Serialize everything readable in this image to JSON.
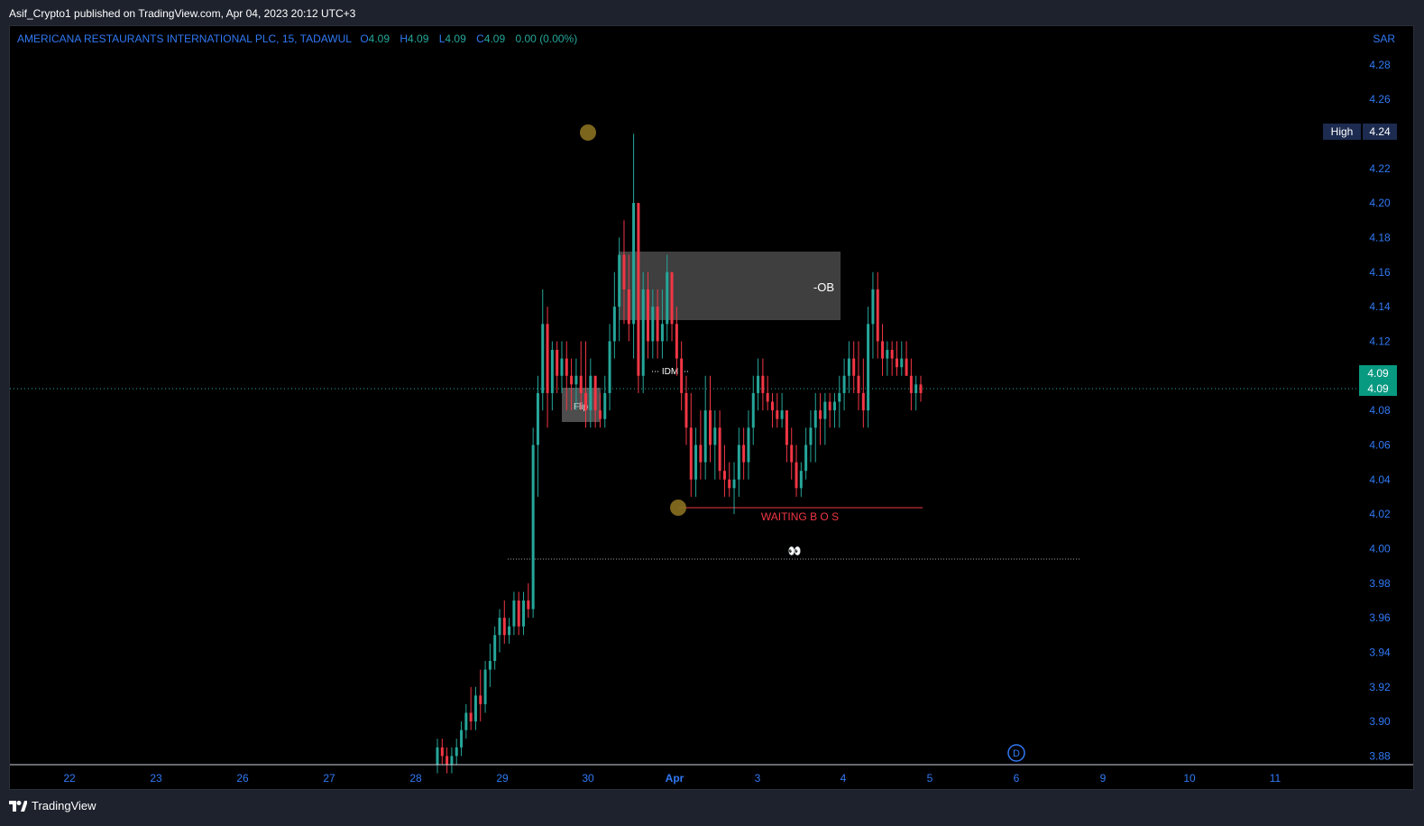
{
  "header": {
    "published": "Asif_Crypto1 published on TradingView.com, Apr 04, 2023 20:12 UTC+3"
  },
  "legend": {
    "symbol": "AMERICANA RESTAURANTS INTERNATIONAL PLC, 15, TADAWUL",
    "open_label": "O",
    "open": "4.09",
    "high_label": "H",
    "high": "4.09",
    "low_label": "L",
    "low": "4.09",
    "close_label": "C",
    "close": "4.09",
    "change": "0.00 (0.00%)"
  },
  "currency": "SAR",
  "brand": "TradingView",
  "colors": {
    "up": "#26a69a",
    "down": "#f23645",
    "accent": "#3179f5",
    "background": "#000000"
  },
  "chart_data": {
    "type": "candlestick",
    "title": "AMERICANA RESTAURANTS INTERNATIONAL PLC, 15, TADAWUL",
    "price_axis_ticks": [
      "4.28",
      "4.26",
      "4.24",
      "4.22",
      "4.20",
      "4.18",
      "4.16",
      "4.14",
      "4.12",
      "4.10",
      "4.08",
      "4.06",
      "4.04",
      "4.02",
      "4.00",
      "3.98",
      "3.96",
      "3.94",
      "3.92",
      "3.90",
      "3.88"
    ],
    "visible_price_ticks": [
      "4.28",
      "4.26",
      "4.22",
      "4.20",
      "4.18",
      "4.16",
      "4.14",
      "4.12",
      "4.08",
      "4.06",
      "4.04",
      "4.02",
      "4.00",
      "3.98",
      "3.96",
      "3.94",
      "3.92",
      "3.90",
      "3.88"
    ],
    "ylim": [
      3.875,
      4.295
    ],
    "time_axis_ticks": [
      "22",
      "23",
      "26",
      "27",
      "28",
      "29",
      "30",
      "Apr",
      "3",
      "4",
      "5",
      "6",
      "9",
      "10",
      "11"
    ],
    "high_label": {
      "label": "High",
      "value": "4.24"
    },
    "last_price_labels": [
      "4.09",
      "4.09"
    ],
    "current_price": 4.09,
    "annotations": {
      "ob_zone": {
        "label": "-OB",
        "top": 4.17,
        "bottom": 4.13
      },
      "flip_zone": {
        "label": "Flip",
        "top": 4.09,
        "bottom": 4.07
      },
      "idm": {
        "label": "IDM",
        "price": 4.1
      },
      "waiting_bos": {
        "label": "WAITING B O S",
        "price": 4.02
      },
      "liquidity_line": {
        "label": "👀",
        "price": 3.99
      },
      "swing_high_marker": 4.24,
      "swing_low_marker": 4.02,
      "dividend_marker": "D"
    },
    "candles_cdt": [
      [
        3.875,
        3.89,
        3.87,
        3.885
      ],
      [
        3.885,
        3.89,
        3.875,
        3.88
      ],
      [
        3.88,
        3.885,
        3.87,
        3.875
      ],
      [
        3.875,
        3.885,
        3.87,
        3.88
      ],
      [
        3.88,
        3.89,
        3.875,
        3.885
      ],
      [
        3.885,
        3.9,
        3.88,
        3.895
      ],
      [
        3.895,
        3.91,
        3.89,
        3.905
      ],
      [
        3.905,
        3.92,
        3.895,
        3.9
      ],
      [
        3.9,
        3.92,
        3.895,
        3.915
      ],
      [
        3.915,
        3.93,
        3.9,
        3.91
      ],
      [
        3.91,
        3.935,
        3.905,
        3.93
      ],
      [
        3.93,
        3.945,
        3.92,
        3.935
      ],
      [
        3.935,
        3.955,
        3.93,
        3.95
      ],
      [
        3.95,
        3.965,
        3.94,
        3.96
      ],
      [
        3.96,
        3.97,
        3.945,
        3.95
      ],
      [
        3.95,
        3.96,
        3.945,
        3.955
      ],
      [
        3.955,
        3.975,
        3.95,
        3.97
      ],
      [
        3.97,
        3.975,
        3.95,
        3.955
      ],
      [
        3.955,
        3.975,
        3.95,
        3.97
      ],
      [
        3.97,
        3.98,
        3.96,
        3.965
      ],
      [
        3.965,
        4.07,
        3.96,
        4.06
      ],
      [
        4.06,
        4.1,
        4.03,
        4.09
      ],
      [
        4.09,
        4.15,
        4.08,
        4.13
      ],
      [
        4.13,
        4.14,
        4.07,
        4.09
      ],
      [
        4.09,
        4.12,
        4.08,
        4.115
      ],
      [
        4.115,
        4.12,
        4.09,
        4.1
      ],
      [
        4.1,
        4.12,
        4.09,
        4.11
      ],
      [
        4.11,
        4.12,
        4.08,
        4.1
      ],
      [
        4.1,
        4.11,
        4.08,
        4.095
      ],
      [
        4.095,
        4.11,
        4.08,
        4.1
      ],
      [
        4.1,
        4.12,
        4.08,
        4.09
      ],
      [
        4.09,
        4.12,
        4.07,
        4.08
      ],
      [
        4.08,
        4.11,
        4.07,
        4.1
      ],
      [
        4.1,
        4.1,
        4.07,
        4.08
      ],
      [
        4.08,
        4.09,
        4.07,
        4.075
      ],
      [
        4.075,
        4.1,
        4.07,
        4.09
      ],
      [
        4.09,
        4.13,
        4.08,
        4.12
      ],
      [
        4.12,
        4.16,
        4.11,
        4.14
      ],
      [
        4.14,
        4.18,
        4.12,
        4.17
      ],
      [
        4.17,
        4.19,
        4.13,
        4.15
      ],
      [
        4.15,
        4.17,
        4.12,
        4.13
      ],
      [
        4.13,
        4.24,
        4.11,
        4.2
      ],
      [
        4.2,
        4.2,
        4.09,
        4.1
      ],
      [
        4.1,
        4.16,
        4.09,
        4.15
      ],
      [
        4.15,
        4.16,
        4.11,
        4.12
      ],
      [
        4.12,
        4.15,
        4.11,
        4.14
      ],
      [
        4.14,
        4.15,
        4.11,
        4.12
      ],
      [
        4.12,
        4.15,
        4.11,
        4.13
      ],
      [
        4.13,
        4.17,
        4.12,
        4.16
      ],
      [
        4.16,
        4.16,
        4.12,
        4.13
      ],
      [
        4.13,
        4.14,
        4.1,
        4.11
      ],
      [
        4.11,
        4.12,
        4.08,
        4.09
      ],
      [
        4.09,
        4.1,
        4.06,
        4.07
      ],
      [
        4.07,
        4.09,
        4.03,
        4.04
      ],
      [
        4.04,
        4.07,
        4.03,
        4.06
      ],
      [
        4.06,
        4.08,
        4.04,
        4.05
      ],
      [
        4.05,
        4.1,
        4.04,
        4.08
      ],
      [
        4.08,
        4.1,
        4.05,
        4.06
      ],
      [
        4.06,
        4.08,
        4.04,
        4.07
      ],
      [
        4.07,
        4.08,
        4.04,
        4.045
      ],
      [
        4.045,
        4.06,
        4.03,
        4.04
      ],
      [
        4.04,
        4.05,
        4.03,
        4.035
      ],
      [
        4.035,
        4.05,
        4.02,
        4.04
      ],
      [
        4.04,
        4.07,
        4.03,
        4.06
      ],
      [
        4.06,
        4.07,
        4.04,
        4.05
      ],
      [
        4.05,
        4.08,
        4.04,
        4.07
      ],
      [
        4.07,
        4.1,
        4.06,
        4.09
      ],
      [
        4.09,
        4.11,
        4.08,
        4.1
      ],
      [
        4.1,
        4.11,
        4.08,
        4.09
      ],
      [
        4.09,
        4.1,
        4.08,
        4.085
      ],
      [
        4.085,
        4.09,
        4.07,
        4.08
      ],
      [
        4.08,
        4.09,
        4.07,
        4.075
      ],
      [
        4.075,
        4.09,
        4.07,
        4.08
      ],
      [
        4.08,
        4.08,
        4.05,
        4.06
      ],
      [
        4.06,
        4.07,
        4.04,
        4.05
      ],
      [
        4.05,
        4.06,
        4.03,
        4.035
      ],
      [
        4.035,
        4.05,
        4.03,
        4.045
      ],
      [
        4.045,
        4.07,
        4.04,
        4.06
      ],
      [
        4.06,
        4.08,
        4.05,
        4.07
      ],
      [
        4.07,
        4.09,
        4.05,
        4.08
      ],
      [
        4.08,
        4.09,
        4.06,
        4.075
      ],
      [
        4.075,
        4.09,
        4.06,
        4.085
      ],
      [
        4.085,
        4.09,
        4.07,
        4.08
      ],
      [
        4.08,
        4.09,
        4.07,
        4.085
      ],
      [
        4.085,
        4.1,
        4.07,
        4.09
      ],
      [
        4.09,
        4.11,
        4.08,
        4.1
      ],
      [
        4.1,
        4.12,
        4.09,
        4.11
      ],
      [
        4.11,
        4.12,
        4.09,
        4.1
      ],
      [
        4.1,
        4.12,
        4.08,
        4.09
      ],
      [
        4.09,
        4.11,
        4.07,
        4.08
      ],
      [
        4.08,
        4.14,
        4.07,
        4.13
      ],
      [
        4.13,
        4.16,
        4.11,
        4.15
      ],
      [
        4.15,
        4.16,
        4.11,
        4.12
      ],
      [
        4.12,
        4.13,
        4.1,
        4.11
      ],
      [
        4.11,
        4.12,
        4.1,
        4.115
      ],
      [
        4.115,
        4.12,
        4.1,
        4.11
      ],
      [
        4.11,
        4.12,
        4.1,
        4.105
      ],
      [
        4.105,
        4.12,
        4.1,
        4.11
      ],
      [
        4.11,
        4.12,
        4.1,
        4.1
      ],
      [
        4.1,
        4.11,
        4.08,
        4.09
      ],
      [
        4.09,
        4.1,
        4.08,
        4.095
      ],
      [
        4.095,
        4.1,
        4.085,
        4.09
      ]
    ]
  }
}
